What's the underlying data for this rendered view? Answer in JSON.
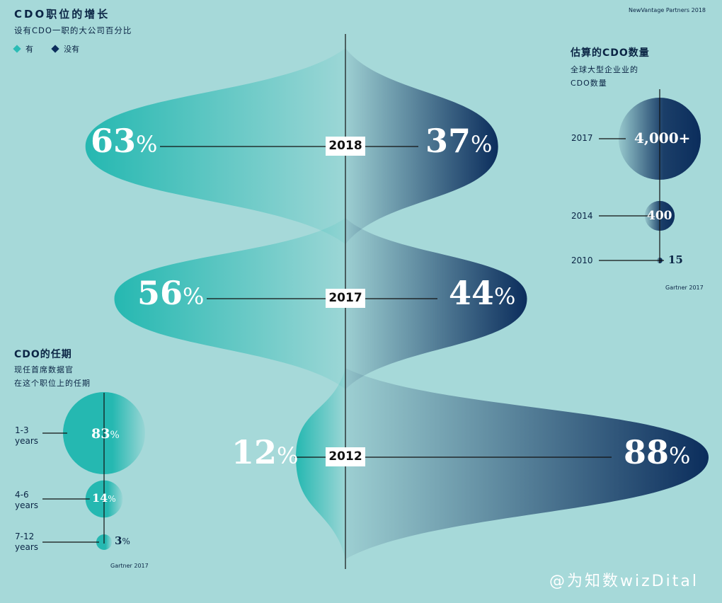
{
  "header": {
    "title": "CDO职位的增长",
    "subtitle": "设有CDO一职的大公司百分比",
    "source": "NewVantage Partners 2018",
    "legend": [
      {
        "label": "有",
        "color": "#2bbcb5"
      },
      {
        "label": "没有",
        "color": "#0b2d5c"
      }
    ]
  },
  "chart_data": [
    {
      "type": "area",
      "title": "CDO职位的增长",
      "subtitle": "设有CDO一职的大公司百分比",
      "years": [
        "2018",
        "2017",
        "2012"
      ],
      "series": [
        {
          "name": "有",
          "values": [
            63,
            56,
            12
          ],
          "labels": [
            "63",
            "56",
            "12"
          ]
        },
        {
          "name": "没有",
          "values": [
            37,
            44,
            88
          ],
          "labels": [
            "37",
            "44",
            "88"
          ]
        }
      ],
      "unit": "%"
    },
    {
      "type": "bubble",
      "title": "估算的CDO数量",
      "subtitle": [
        "全球大型企业业的",
        "CDO数量"
      ],
      "categories": [
        "2017",
        "2014",
        "2010"
      ],
      "values": [
        4000,
        400,
        15
      ],
      "labels": [
        "4,000+",
        "400",
        "15"
      ],
      "source": "Gartner 2017"
    },
    {
      "type": "bubble",
      "title": "CDO的任期",
      "subtitle": [
        "现任首席数据官",
        "在这个职位上的任期"
      ],
      "categories": [
        [
          "1-3",
          "years"
        ],
        [
          "4-6",
          "years"
        ],
        [
          "7-12",
          "years"
        ]
      ],
      "values": [
        83,
        14,
        3
      ],
      "unit": "%",
      "source": "Gartner 2017"
    }
  ],
  "colors": {
    "yes": "#2bbcb5",
    "no": "#0b2d5c",
    "background": "#a6d9d9"
  },
  "watermark": "@为知数wizDital"
}
